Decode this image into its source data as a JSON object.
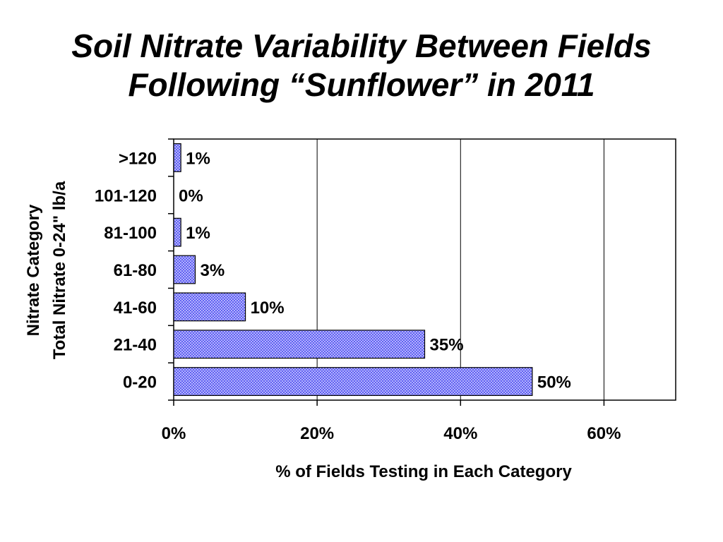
{
  "title_lines": [
    "Soil Nitrate Variability Between Fields",
    "Following “Sunflower” in 2011"
  ],
  "chart_data": {
    "type": "bar",
    "orientation": "horizontal",
    "categories": [
      ">120",
      "101-120",
      "81-100",
      "61-80",
      "41-60",
      "21-40",
      "0-20"
    ],
    "values": [
      1,
      0,
      1,
      3,
      10,
      35,
      50
    ],
    "value_labels": [
      "1%",
      "0%",
      "1%",
      "3%",
      "10%",
      "35%",
      "50%"
    ],
    "xlabel": "% of Fields Testing in Each Category",
    "ylabel_lines": [
      "Nitrate Category",
      "Total Nitrate 0-24\" lb/a"
    ],
    "xlim": [
      0,
      70
    ],
    "xticks": [
      0,
      20,
      40,
      60
    ],
    "xtick_labels": [
      "0%",
      "20%",
      "40%",
      "60%"
    ],
    "grid": "vertical",
    "legend": "none",
    "bar_color": "#4444ee",
    "bar_pattern": "crosshatch"
  }
}
